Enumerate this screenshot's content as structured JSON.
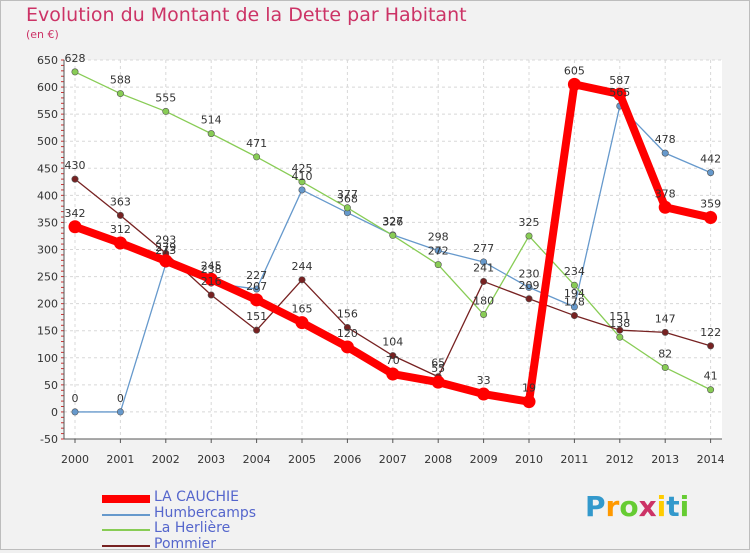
{
  "header": {
    "title": "Evolution du Montant de la Dette par Habitant",
    "subtitle": "(en €)"
  },
  "logo": {
    "text": "Proxiti",
    "letters": [
      "P",
      "r",
      "o",
      "x",
      "i",
      "t",
      "i"
    ],
    "colors": [
      "#3399cc",
      "#ff9900",
      "#66cc33",
      "#cc3366",
      "#ffcc00",
      "#3399cc",
      "#66cc33"
    ]
  },
  "chart_data": {
    "type": "line",
    "title": "Evolution du Montant de la Dette par Habitant",
    "subtitle": "(en €)",
    "xlabel": "",
    "ylabel": "",
    "x": [
      "2000",
      "2001",
      "2002",
      "2003",
      "2004",
      "2005",
      "2006",
      "2007",
      "2008",
      "2009",
      "2010",
      "2011",
      "2012",
      "2013",
      "2014"
    ],
    "ylim": [
      -50,
      650
    ],
    "yticks": [
      -50,
      0,
      50,
      100,
      150,
      200,
      250,
      300,
      350,
      400,
      450,
      500,
      550,
      600,
      650
    ],
    "grid": true,
    "legend_position": "bottom-left",
    "series": [
      {
        "name": "LA CAUCHIE",
        "color": "#ff0000",
        "emphasis": true,
        "values": [
          342,
          312,
          279,
          245,
          207,
          165,
          120,
          70,
          55,
          33,
          19,
          605,
          587,
          378,
          359
        ]
      },
      {
        "name": "Humbercamps",
        "color": "#6699cc",
        "values": [
          0,
          0,
          273,
          238,
          227,
          410,
          368,
          327,
          298,
          277,
          230,
          194,
          565,
          478,
          442
        ]
      },
      {
        "name": "La Herlière",
        "color": "#88cc55",
        "values": [
          628,
          588,
          555,
          514,
          471,
          425,
          377,
          326,
          272,
          180,
          325,
          234,
          138,
          82,
          41
        ]
      },
      {
        "name": "Pommier",
        "color": "#772222",
        "values": [
          430,
          363,
          293,
          216,
          151,
          244,
          156,
          104,
          65,
          241,
          209,
          178,
          151,
          147,
          122
        ]
      }
    ]
  }
}
